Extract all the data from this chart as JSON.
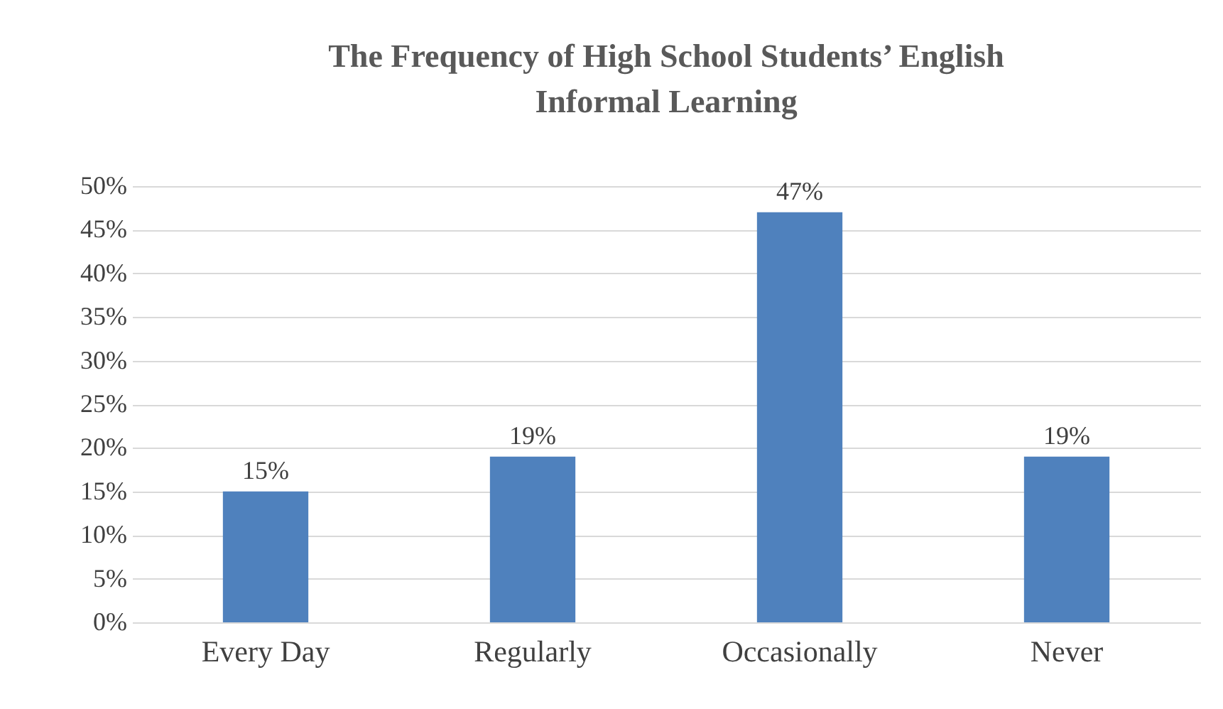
{
  "chart_data": {
    "type": "bar",
    "title": "The Frequency of High School Students’ English Informal Learning",
    "categories": [
      "Every Day",
      "Regularly",
      "Occasionally",
      "Never"
    ],
    "values": [
      15,
      19,
      47,
      19
    ],
    "value_labels": [
      "15%",
      "19%",
      "47%",
      "19%"
    ],
    "color": "#4f81bd",
    "ylim": [
      0,
      50
    ],
    "yticks": [
      {
        "value": 0,
        "label": "0%"
      },
      {
        "value": 5,
        "label": "5%"
      },
      {
        "value": 10,
        "label": "10%"
      },
      {
        "value": 15,
        "label": "15%"
      },
      {
        "value": 20,
        "label": "20%"
      },
      {
        "value": 25,
        "label": "25%"
      },
      {
        "value": 30,
        "label": "30%"
      },
      {
        "value": 35,
        "label": "35%"
      },
      {
        "value": 40,
        "label": "40%"
      },
      {
        "value": 45,
        "label": "45%"
      },
      {
        "value": 50,
        "label": "50%"
      }
    ],
    "grid": "y"
  }
}
